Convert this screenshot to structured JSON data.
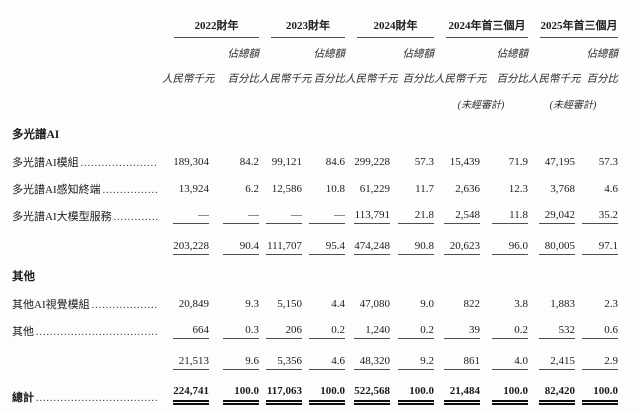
{
  "table": {
    "column_groups": [
      {
        "period": "2022財年",
        "unaudited": false
      },
      {
        "period": "2023財年",
        "unaudited": false
      },
      {
        "period": "2024財年",
        "unaudited": false
      },
      {
        "period": "2024年首三個月",
        "unaudited": true
      },
      {
        "period": "2025年首三個月",
        "unaudited": true
      }
    ],
    "subheaders": {
      "share_of_total": "佔總額",
      "amount": "人民幣千元",
      "percent": "百分比",
      "unaudited_note": "(未經審計)"
    },
    "sections": [
      {
        "title": "多光譜AI",
        "rows": [
          {
            "label": "多光譜AI模組",
            "values": [
              "189,304",
              "84.2",
              "99,121",
              "84.6",
              "299,228",
              "57.3",
              "15,439",
              "71.9",
              "47,195",
              "57.3"
            ]
          },
          {
            "label": "多光譜AI感知終端",
            "values": [
              "13,924",
              "6.2",
              "12,586",
              "10.8",
              "61,229",
              "11.7",
              "2,636",
              "12.3",
              "3,768",
              "4.6"
            ]
          },
          {
            "label": "多光譜AI大模型服務",
            "rule_below": true,
            "values": [
              "—",
              "—",
              "—",
              "—",
              "113,791",
              "21.8",
              "2,548",
              "11.8",
              "29,042",
              "35.2"
            ]
          }
        ],
        "subtotal": [
          "203,228",
          "90.4",
          "111,707",
          "95.4",
          "474,248",
          "90.8",
          "20,623",
          "96.0",
          "80,005",
          "97.1"
        ]
      },
      {
        "title": "其他",
        "rows": [
          {
            "label": "其他AI視覺模組",
            "values": [
              "20,849",
              "9.3",
              "5,150",
              "4.4",
              "47,080",
              "9.0",
              "822",
              "3.8",
              "1,883",
              "2.3"
            ]
          },
          {
            "label": "其他",
            "rule_below": true,
            "values": [
              "664",
              "0.3",
              "206",
              "0.2",
              "1,240",
              "0.2",
              "39",
              "0.2",
              "532",
              "0.6"
            ]
          }
        ],
        "subtotal": [
          "21,513",
          "9.6",
          "5,356",
          "4.6",
          "48,320",
          "9.2",
          "861",
          "4.0",
          "2,415",
          "2.9"
        ]
      }
    ],
    "total": {
      "label": "總計",
      "values": [
        "224,741",
        "100.0",
        "117,063",
        "100.0",
        "522,568",
        "100.0",
        "21,484",
        "100.0",
        "82,420",
        "100.0"
      ]
    }
  }
}
